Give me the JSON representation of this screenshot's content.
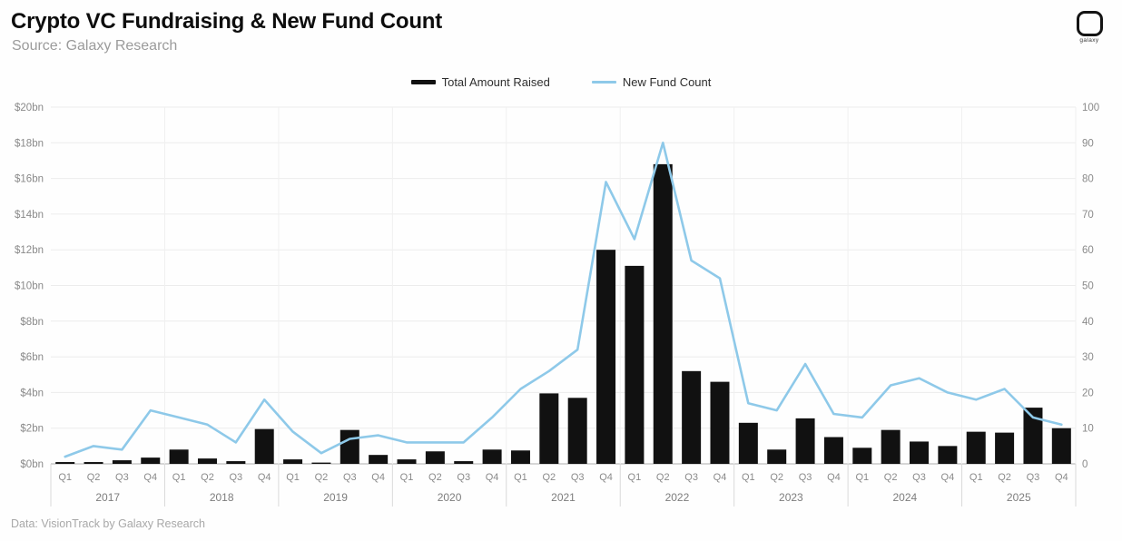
{
  "header": {
    "title": "Crypto VC Fundraising & New Fund Count",
    "subtitle": "Source: Galaxy Research",
    "logo_text": "galaxy"
  },
  "legend": [
    {
      "label": "Total Amount Raised",
      "color": "#111111",
      "type": "bar"
    },
    {
      "label": "New Fund Count",
      "color": "#8ec9e9",
      "type": "line"
    }
  ],
  "footer": {
    "text": "Data: VisionTrack by Galaxy Research"
  },
  "chart_data": {
    "type": "bar",
    "title": "Crypto VC Fundraising & New Fund Count",
    "years": [
      "2017",
      "2018",
      "2019",
      "2020",
      "2021",
      "2022",
      "2023",
      "2024",
      "2025"
    ],
    "quarter_labels": [
      "Q1",
      "Q2",
      "Q3",
      "Q4"
    ],
    "grid": true,
    "legend_position": "top",
    "left_axis": {
      "min": 0,
      "max": 20,
      "step": 2,
      "unit": "$bn",
      "tick_labels": [
        "$0bn",
        "$2bn",
        "$4bn",
        "$6bn",
        "$8bn",
        "$10bn",
        "$12bn",
        "$14bn",
        "$16bn",
        "$18bn",
        "$20bn"
      ]
    },
    "right_axis": {
      "min": 0,
      "max": 100,
      "step": 10,
      "tick_labels": [
        "0",
        "10",
        "20",
        "30",
        "40",
        "50",
        "60",
        "70",
        "80",
        "90",
        "100"
      ]
    },
    "series": [
      {
        "name": "Total Amount Raised",
        "type": "bar",
        "axis": "left",
        "unit": "$bn",
        "color": "#111111",
        "values": [
          0.1,
          0.1,
          0.2,
          0.35,
          0.8,
          0.3,
          0.15,
          1.95,
          0.25,
          0.05,
          1.9,
          0.5,
          0.25,
          0.7,
          0.15,
          0.8,
          0.75,
          3.95,
          3.7,
          12.0,
          11.1,
          16.8,
          5.2,
          4.6,
          2.3,
          0.8,
          2.55,
          1.5,
          0.9,
          1.9,
          1.25,
          1.0,
          1.8,
          1.75,
          3.15,
          2.0
        ]
      },
      {
        "name": "New Fund Count",
        "type": "line",
        "axis": "right",
        "unit": "funds",
        "color": "#8ec9e9",
        "values": [
          2,
          5,
          4,
          15,
          13,
          11,
          6,
          18,
          9,
          3,
          7,
          8,
          6,
          6,
          6,
          13,
          21,
          26,
          32,
          79,
          63,
          90,
          57,
          52,
          17,
          15,
          28,
          14,
          13,
          22,
          24,
          20,
          18,
          21,
          13,
          11
        ]
      }
    ]
  }
}
